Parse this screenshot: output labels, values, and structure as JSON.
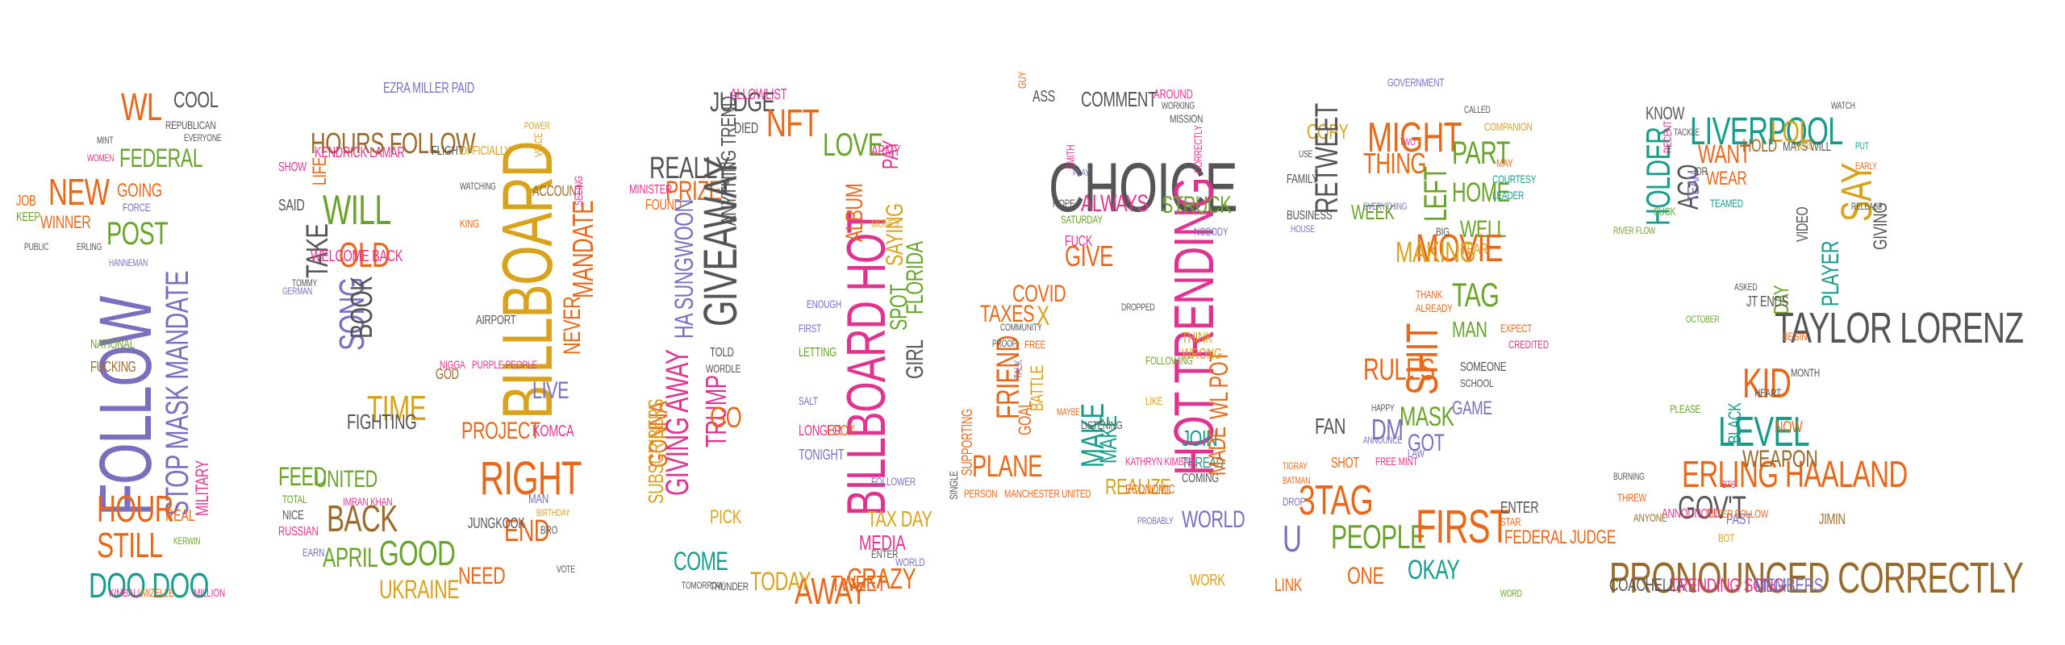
{
  "title": "",
  "colors": {
    "background": "#ffffff",
    "palette": {
      "purple": "#7a6fbf",
      "orange": "#e8681a",
      "gold": "#d9a21b",
      "green": "#6aa32a",
      "teal": "#169c8a",
      "magenta": "#e0338f",
      "brown": "#9a6a2a",
      "gray": "#555555"
    }
  },
  "words": [
    "FOLLOW",
    "STOP MASK MANDATE",
    "HOUR",
    "STILL",
    "DOO DOO",
    "NEW",
    "WL",
    "COOL",
    "FEDERAL",
    "POST",
    "GOING",
    "WINNER",
    "MILITARY",
    "JOB",
    "KEEP",
    "NATIONAL",
    "FUCKING",
    "MIZELLE",
    "MILLION",
    "KIMBALL",
    "REAL",
    "REPUBLICAN",
    "EVERYONE",
    "MINT",
    "WOMEN",
    "PUBLIC",
    "ERLING",
    "FORCE",
    "HANNEMAN",
    "KERWIN",
    "HOURS FOLLOW",
    "EZRA MILLER PAID",
    "WILL",
    "OLD",
    "SONG",
    "TAKE",
    "BOOK",
    "SAID",
    "LIFE",
    "SHOW",
    "KENDRICK LAMAR",
    "WELCOME BACK",
    "TIME",
    "FIGHTING",
    "GOD",
    "BILLBOARD",
    "MANDATE",
    "NEVER",
    "LIVE",
    "PROJECT",
    "KOMCA",
    "RIGHT",
    "END",
    "GOOD",
    "UKRAINE",
    "NEED",
    "BACK",
    "APRIL",
    "FEED",
    "UNITED",
    "IMRAN KHAN",
    "TOTAL",
    "NICE",
    "RUSSIAN",
    "EARN",
    "MAN",
    "JUNGKOOK",
    "AIRPORT",
    "ACCOUNT",
    "FLIGHT",
    "OFFICIALLY",
    "VOICE",
    "POWER",
    "KING",
    "NIGGA",
    "PURPLE PEOPLE",
    "WATCHING",
    "TOMMY",
    "GERMAN",
    "SEEING",
    "VOTE",
    "BRO",
    "BIRTHDAY",
    "JUDGE",
    "NFT",
    "LOVE",
    "REALLY",
    "PRIZE",
    "GIVEAWAY",
    "ANYTHING TREND",
    "FOUND",
    "GONNA",
    "HA SUNGWOON",
    "GIVING AWAY",
    "TRUMP",
    "GO",
    "BILLBOARD HOT",
    "ALBUM",
    "SAYING",
    "FLORIDA",
    "GIRL",
    "SPOT",
    "AWAY",
    "CRAZY",
    "TODAY",
    "COME",
    "PICK",
    "TAX DAY",
    "SUBSCRIBERS",
    "TONIGHT",
    "LONGER",
    "LOOK",
    "THUNDER",
    "TOMORROW",
    "TWEET",
    "MEDIA",
    "PAY",
    "ARMY",
    "ALLOWLIST",
    "DIED",
    "MINISTER",
    "FIRST",
    "SALT",
    "ENOUGH",
    "LETTING",
    "TOLD",
    "WORDLE",
    "FOLLOWER",
    "ENTER",
    "WORLD",
    "MONEY",
    "CHOICE",
    "COMMENT",
    "AROUND",
    "ASS",
    "HOT TRENDING",
    "ALWAYS",
    "STRUCK",
    "WL POT",
    "GIVE",
    "COVID",
    "FUCK",
    "TAXES",
    "X",
    "FRIEND",
    "PLANE",
    "MAKE",
    "MAKE",
    "JOIN",
    "THREAD",
    "COMING",
    "REALIZE",
    "WORLD",
    "WORK",
    "MADE",
    "THINK",
    "WRONG",
    "BATTLE",
    "GOAL",
    "FREE",
    "SUPPORTING",
    "SINGLE",
    "PERSON",
    "MANCHESTER UNITED",
    "COMMUNITY",
    "PROOF",
    "LIKE",
    "FOLLOWING",
    "LISTENING",
    "KATHRYN KIMBALL",
    "PROBABLY",
    "ECONOMIC",
    "MAYBE",
    "NOBODY",
    "CORRECTLY",
    "MISSION",
    "WORKING",
    "SATURDAY",
    "GUY",
    "SMITH",
    "PLAY",
    "HOPE",
    "TALK",
    "DROPPED",
    "MIGHT",
    "COPY",
    "RETWEET",
    "THING",
    "WEEK",
    "PART",
    "HOME",
    "WELL",
    "YEAR",
    "LEFT",
    "MOVIE",
    "MAKING",
    "TAG",
    "MAN",
    "SHIT",
    "RULES",
    "MASK",
    "GOT",
    "GAME",
    "FAN",
    "DM",
    "3TAG",
    "U",
    "PEOPLE",
    "ONE",
    "FIRST",
    "OKAY",
    "ENTER",
    "FEDERAL JUDGE",
    "LINK",
    "SHOT",
    "FREE MINT",
    "SOMEONE",
    "SCHOOL",
    "THANK",
    "ALREADY",
    "EXPECT",
    "CREDITED",
    "BIG",
    "MAY",
    "COURTESY",
    "LEADER",
    "FAMILY",
    "BUSINESS",
    "HOUSE",
    "USE",
    "GOVERNMENT",
    "TWO",
    "EVERYTHING",
    "CALLED",
    "LAW",
    "DROP",
    "BATMAN",
    "TIGRAY",
    "STAR",
    "WORD",
    "ANNOUNCE",
    "COMPANION",
    "HAPPY",
    "LIVERPOOL",
    "LOL",
    "KNOW",
    "WANT",
    "HOLD",
    "WEAR",
    "HOLDER",
    "AGO",
    "TEAM",
    "SAY",
    "VIDEO",
    "GIVING",
    "MAYS WILL",
    "TAYLOR LORENZ",
    "PLAYER",
    "DAY",
    "KID",
    "LEVEL",
    "BLACK",
    "NOW",
    "ERLING HAALAND",
    "WEAPON",
    "GOV'T",
    "PAST",
    "JIMIN",
    "PRONOUNCED CORRECTLY",
    "COACHELLA",
    "TRENDING SONG",
    "MEMBERS",
    "ANNOUNCED",
    "ENTER FOLLOW",
    "ANYONE",
    "THREW",
    "BURNING",
    "JT ENDS",
    "BEGIN",
    "IDR",
    "RIVER FLOW",
    "SUCK",
    "TEAMED",
    "TACKLE",
    "RECENT",
    "HEART",
    "BTS",
    "BOT",
    "NERD",
    "PUT",
    "WATCH",
    "MONTH",
    "ASKED",
    "RELEASE",
    "EARLY",
    "PLEASE",
    "OCTOBER",
    "GLAD",
    "FINALLY"
  ]
}
